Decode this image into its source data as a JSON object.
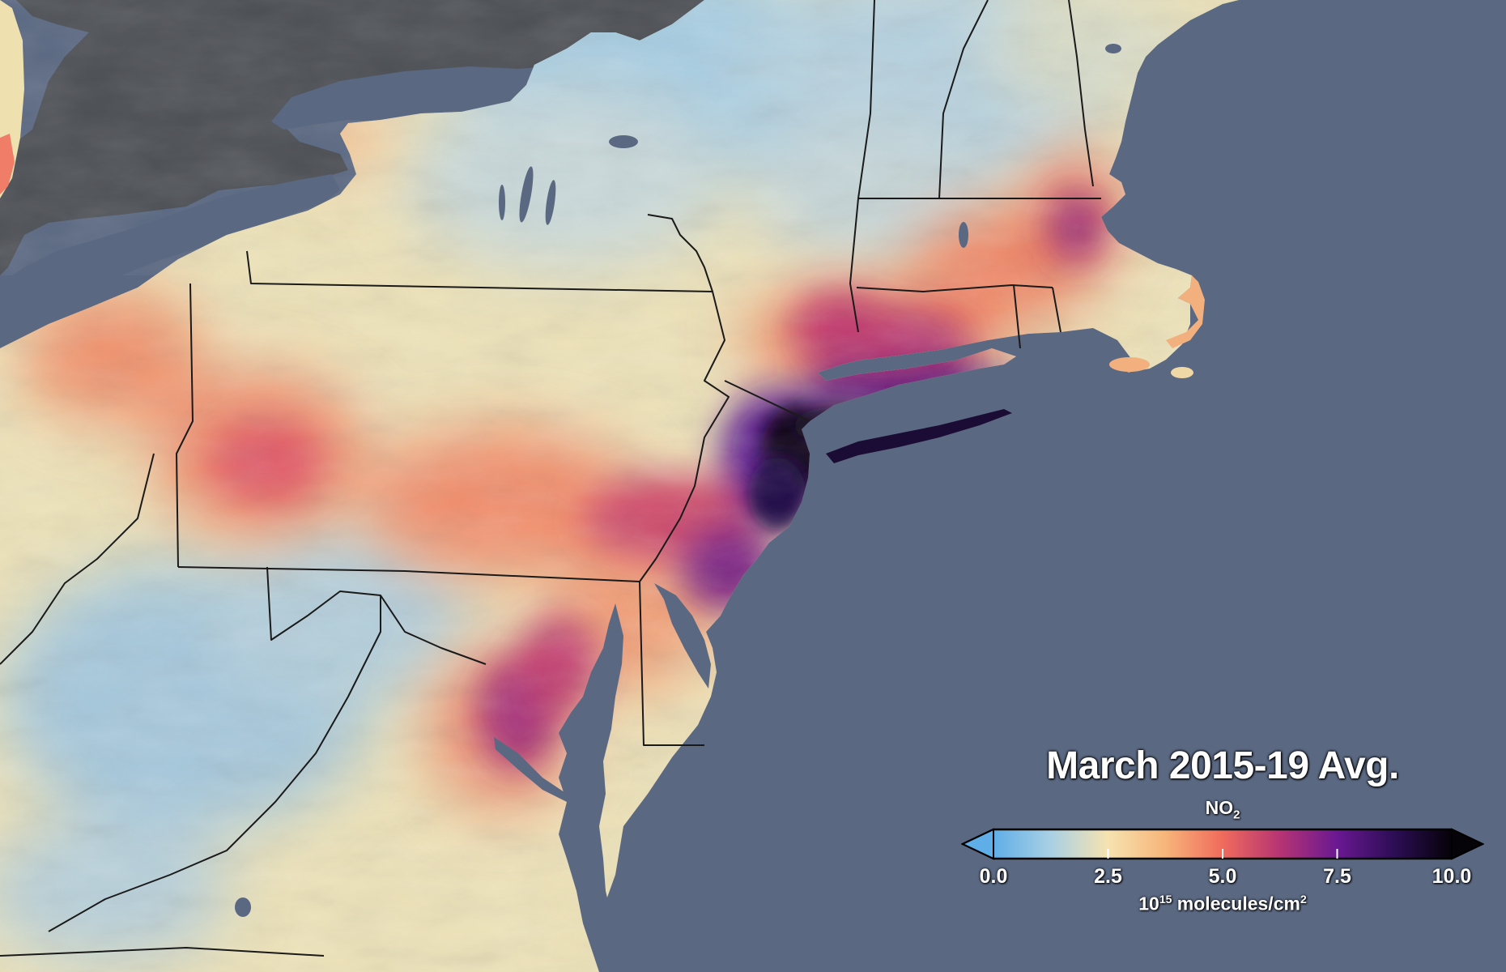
{
  "map": {
    "region": "Northeastern United States",
    "variable_name": "NO",
    "variable_subscript": "2",
    "colors": {
      "water": "#5a6882",
      "canada_land": "#4a4d52",
      "state_border": "#1a1a1a"
    }
  },
  "legend": {
    "title": "March 2015-19 Avg.",
    "ticks": [
      "0.0",
      "2.5",
      "5.0",
      "7.5",
      "10.0"
    ],
    "tick_values": [
      0,
      2.5,
      5,
      7.5,
      10
    ],
    "units_prefix": "10",
    "units_exponent": "15",
    "units_main": " molecules/cm",
    "units_power": "2",
    "colorbar_stops": [
      "#5faee8",
      "#a9d0e4",
      "#f6e3b0",
      "#f7b57a",
      "#f06b5c",
      "#b63473",
      "#6a1892",
      "#2c0d55",
      "#050208"
    ],
    "range_min": 0,
    "range_max": 10
  }
}
